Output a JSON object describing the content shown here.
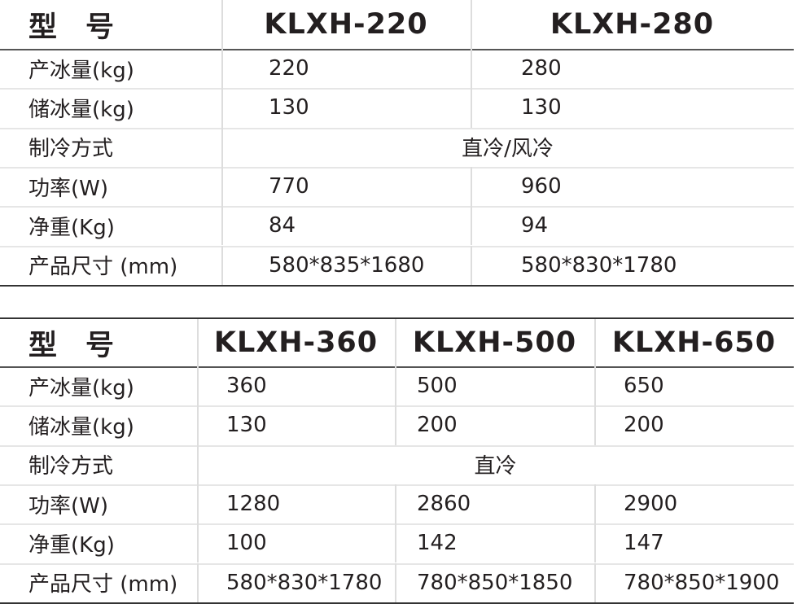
{
  "tables": [
    {
      "header": [
        "型　号",
        "KLXH-220",
        "KLXH-280"
      ],
      "rows": [
        [
          "产冰量(kg)",
          "220",
          "280"
        ],
        [
          "储冰量(kg)",
          "130",
          "130"
        ],
        [
          "制冷方式",
          "直冷/风冷"
        ],
        [
          "功率(W)",
          "770",
          "960"
        ],
        [
          "净重(Kg)",
          "84",
          "94"
        ],
        [
          "产品尺寸 (mm)",
          "580*835*1680",
          "580*830*1780"
        ]
      ]
    },
    {
      "header": [
        "型　号",
        "KLXH-360",
        "KLXH-500",
        "KLXH-650"
      ],
      "rows": [
        [
          "产冰量(kg)",
          "360",
          "500",
          "650"
        ],
        [
          "储冰量(kg)",
          "130",
          "200",
          "200"
        ],
        [
          "制冷方式",
          "直冷"
        ],
        [
          "功率(W)",
          "1280",
          "2860",
          "2900"
        ],
        [
          "净重(Kg)",
          "100",
          "142",
          "147"
        ],
        [
          "产品尺寸 (mm)",
          "580*830*1780",
          "780*850*1850",
          "780*850*1900"
        ]
      ]
    }
  ]
}
